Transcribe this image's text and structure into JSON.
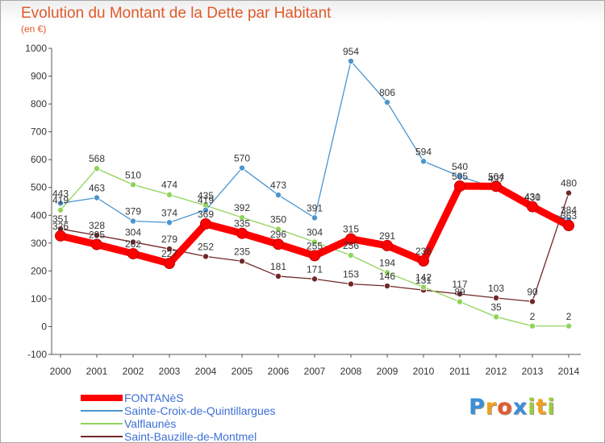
{
  "header": {
    "title": "Evolution du Montant de la Dette par Habitant",
    "subtitle": "(en €)"
  },
  "logo": {
    "letters": [
      "P",
      "r",
      "o",
      "x",
      "i",
      "t",
      "i"
    ],
    "colors": [
      "#3a8fd9",
      "#f2a11c",
      "#e55a2b",
      "#3a8fd9",
      "#9ccc3a",
      "#f2a11c",
      "#9ccc3a"
    ]
  },
  "chart_data": {
    "type": "line",
    "x": [
      "2000",
      "2001",
      "2002",
      "2003",
      "2004",
      "2005",
      "2006",
      "2007",
      "2008",
      "2009",
      "2010",
      "2011",
      "2012",
      "2013",
      "2014"
    ],
    "ylim": [
      -100,
      1000
    ],
    "yticks": [
      "-100",
      "0",
      "100",
      "200",
      "300",
      "400",
      "500",
      "600",
      "700",
      "800",
      "900",
      "1000"
    ],
    "grid": false,
    "legend_position": "bottom-left",
    "series": [
      {
        "name": "FONTANèS",
        "color": "#ff0000",
        "values": [
          326,
          295,
          262,
          227,
          369,
          335,
          296,
          255,
          315,
          291,
          236,
          505,
          504,
          431,
          363
        ],
        "labels": [
          "326",
          "295",
          "262",
          "227",
          "369",
          "335",
          "296",
          "255",
          "315",
          "291",
          "236",
          "505",
          "504",
          "431",
          "363"
        ]
      },
      {
        "name": "Sainte-Croix-de-Quintillargues",
        "color": "#4b95cf",
        "values": [
          443,
          463,
          379,
          374,
          419,
          570,
          473,
          391,
          954,
          806,
          594,
          540,
          497,
          430,
          384
        ],
        "labels": [
          "443",
          "463",
          "379",
          "374",
          "419",
          "570",
          "473",
          "391",
          "954",
          "806",
          "594",
          "540",
          "497",
          "430",
          "384"
        ]
      },
      {
        "name": "Valflaunès",
        "color": "#8fd45a",
        "values": [
          419,
          568,
          510,
          474,
          435,
          392,
          350,
          304,
          256,
          194,
          142,
          89,
          35,
          2,
          2
        ],
        "labels": [
          "419",
          "568",
          "510",
          "474",
          "435",
          "392",
          "350",
          "304",
          "256",
          "194",
          "142",
          "89",
          "35",
          "2",
          "2"
        ]
      },
      {
        "name": "Saint-Bauzille-de-Montmel",
        "color": "#702828",
        "values": [
          351,
          328,
          304,
          279,
          252,
          235,
          181,
          171,
          153,
          146,
          131,
          117,
          103,
          90,
          480
        ],
        "labels": [
          "351",
          "328",
          "304",
          "279",
          "252",
          "235",
          "181",
          "171",
          "153",
          "146",
          "131",
          "117",
          "103",
          "90",
          "480"
        ]
      }
    ]
  }
}
